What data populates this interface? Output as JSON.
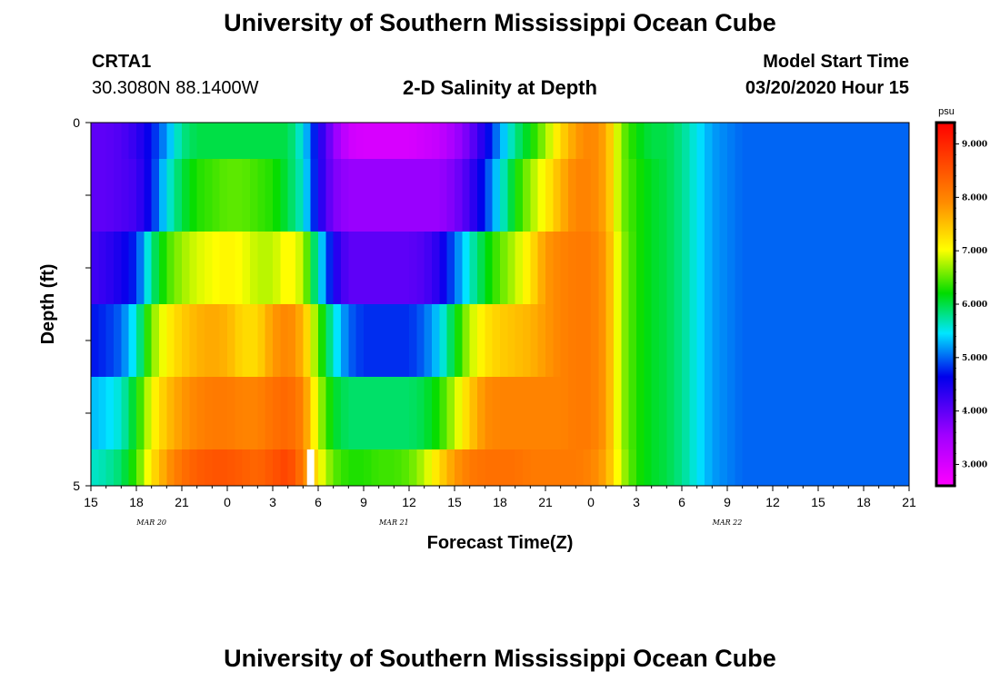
{
  "header": {
    "title_top": "University of Southern Mississippi Ocean Cube",
    "station_id": "CRTA1",
    "station_coords": "30.3080N 88.1400W",
    "model_start_label": "Model Start Time",
    "model_start_value": "03/20/2020 Hour 15",
    "title_bottom": "University of Southern Mississippi Ocean Cube"
  },
  "chart_data": {
    "type": "heatmap",
    "title": "2-D Salinity at Depth",
    "xlabel": "Forecast Time(Z)",
    "ylabel": "Depth (ft)",
    "x_tick_labels": [
      "15",
      "18",
      "21",
      "0",
      "3",
      "6",
      "9",
      "12",
      "15",
      "18",
      "21",
      "0",
      "3",
      "6",
      "9",
      "12",
      "15",
      "18",
      "21"
    ],
    "date_labels": [
      {
        "label": "MAR  20",
        "hour_index": 4
      },
      {
        "label": "MAR  21",
        "hour_index": 20
      },
      {
        "label": "MAR  22",
        "hour_index": 42
      }
    ],
    "y_tick_labels": [
      "0",
      "5"
    ],
    "ylim": [
      0,
      5
    ],
    "x_range_hours": [
      0,
      54
    ],
    "colorbar": {
      "unit": "psu",
      "range": [
        2.6,
        9.4
      ],
      "tick_labels": [
        "3.000",
        "4.000",
        "5.000",
        "6.000",
        "7.000",
        "8.000",
        "9.000"
      ],
      "tick_values": [
        3,
        4,
        5,
        6,
        7,
        8,
        9
      ]
    },
    "rows": [
      {
        "depth_range": [
          0,
          0.5
        ],
        "salinity": [
          4.0,
          4.0,
          4.1,
          4.3,
          4.7,
          5.2,
          5.8,
          6.0,
          6.0,
          6.0,
          6.0,
          6.0,
          6.0,
          6.0,
          5.5,
          4.5,
          3.7,
          3.1,
          3.0,
          3.0,
          3.0,
          3.0,
          3.1,
          3.2,
          3.5,
          3.9,
          4.5,
          5.2,
          5.8,
          6.2,
          6.7,
          7.3,
          7.8,
          8.0,
          7.7,
          6.6,
          6.2,
          6.0,
          6.0,
          5.8,
          5.5,
          5.2,
          5.1,
          5.0,
          5.0,
          5.0,
          5.0,
          5.0,
          5.0,
          5.0,
          5.0,
          5.0,
          5.0,
          5.0,
          5.0
        ]
      },
      {
        "depth_range": [
          0.5,
          1.5
        ],
        "salinity": [
          4.0,
          4.0,
          4.1,
          4.2,
          4.7,
          5.5,
          6.0,
          6.3,
          6.4,
          6.5,
          6.5,
          6.4,
          6.3,
          6.0,
          5.6,
          4.5,
          3.8,
          3.6,
          3.6,
          3.6,
          3.6,
          3.6,
          3.6,
          3.6,
          3.8,
          4.2,
          4.8,
          5.5,
          6.2,
          6.7,
          7.1,
          7.6,
          8.0,
          8.0,
          7.7,
          6.6,
          6.3,
          6.1,
          6.0,
          5.8,
          5.5,
          5.2,
          5.1,
          5.0,
          5.0,
          5.0,
          5.0,
          5.0,
          5.0,
          5.0,
          5.0,
          5.0,
          5.0,
          5.0,
          5.0
        ]
      },
      {
        "depth_range": [
          1.5,
          2.5
        ],
        "salinity": [
          4.2,
          4.3,
          4.5,
          4.8,
          5.8,
          6.4,
          6.7,
          6.9,
          7.0,
          7.1,
          7.0,
          6.8,
          6.8,
          7.1,
          6.8,
          5.6,
          4.5,
          4.0,
          4.0,
          4.0,
          4.0,
          4.0,
          4.1,
          4.4,
          5.0,
          5.6,
          6.1,
          6.5,
          6.8,
          7.2,
          7.8,
          8.0,
          8.1,
          8.1,
          7.8,
          6.7,
          6.3,
          6.1,
          6.0,
          5.8,
          5.5,
          5.2,
          5.1,
          5.0,
          5.0,
          5.0,
          5.0,
          5.0,
          5.0,
          5.0,
          5.0,
          5.0,
          5.0,
          5.0,
          5.0
        ]
      },
      {
        "depth_range": [
          2.5,
          3.5
        ],
        "salinity": [
          4.7,
          4.8,
          5.0,
          5.6,
          6.6,
          7.1,
          7.4,
          7.6,
          7.7,
          7.6,
          7.3,
          7.3,
          7.8,
          8.0,
          7.6,
          6.5,
          5.6,
          5.0,
          4.8,
          4.8,
          4.8,
          4.8,
          5.0,
          5.4,
          6.1,
          6.8,
          7.2,
          7.4,
          7.5,
          7.6,
          7.8,
          8.0,
          8.1,
          8.1,
          7.8,
          6.7,
          6.3,
          6.1,
          6.0,
          5.8,
          5.5,
          5.2,
          5.1,
          5.0,
          5.0,
          5.0,
          5.0,
          5.0,
          5.0,
          5.0,
          5.0,
          5.0,
          5.0,
          5.0,
          5.0
        ]
      },
      {
        "depth_range": [
          3.5,
          4.5
        ],
        "salinity": [
          5.3,
          5.4,
          5.6,
          6.2,
          7.0,
          7.5,
          7.8,
          8.0,
          8.1,
          8.1,
          8.0,
          8.0,
          8.2,
          8.3,
          8.0,
          6.8,
          6.1,
          5.9,
          5.9,
          5.9,
          5.9,
          5.9,
          6.0,
          6.3,
          6.8,
          7.4,
          7.9,
          8.0,
          8.0,
          8.0,
          8.0,
          8.0,
          8.1,
          8.1,
          7.8,
          6.7,
          6.3,
          6.1,
          6.0,
          5.8,
          5.5,
          5.2,
          5.1,
          5.0,
          5.0,
          5.0,
          5.0,
          5.0,
          5.0,
          5.0,
          5.0,
          5.0,
          5.0,
          5.0,
          5.0
        ]
      },
      {
        "depth_range": [
          4.5,
          5
        ],
        "salinity": [
          5.6,
          5.7,
          5.9,
          6.4,
          7.2,
          7.8,
          8.2,
          8.4,
          8.5,
          8.5,
          8.4,
          8.3,
          8.5,
          8.7,
          8.1,
          7.1,
          6.5,
          6.3,
          6.3,
          6.4,
          6.4,
          6.5,
          6.8,
          7.3,
          7.8,
          8.1,
          8.2,
          8.2,
          8.2,
          8.1,
          8.1,
          8.1,
          8.1,
          8.0,
          7.7,
          6.8,
          6.3,
          6.1,
          6.0,
          5.8,
          5.5,
          5.2,
          5.1,
          5.0,
          5.0,
          5.0,
          5.0,
          5.0,
          5.0,
          5.0,
          5.0,
          5.0,
          5.0,
          5.0,
          5.0
        ]
      }
    ],
    "annotations": [
      {
        "type": "white-marker",
        "hour": 14,
        "depth_range": [
          4.5,
          5
        ]
      }
    ]
  }
}
